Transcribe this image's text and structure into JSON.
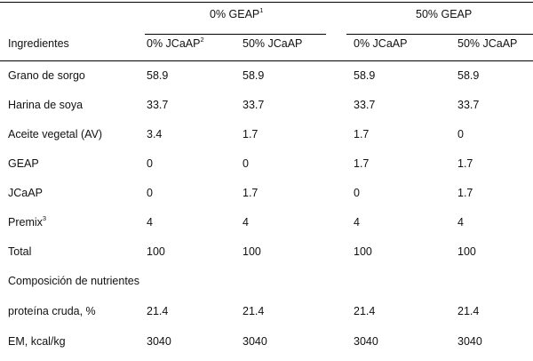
{
  "table": {
    "group_headers": [
      {
        "label": "0% GEAP",
        "sup": "1"
      },
      {
        "label": "50% GEAP",
        "sup": ""
      }
    ],
    "row_header_label": "Ingredientes",
    "sub_headers": [
      {
        "label": "0% JCaAP",
        "sup": "2"
      },
      {
        "label": "50% JCaAP",
        "sup": ""
      },
      {
        "label": "0% JCaAP",
        "sup": ""
      },
      {
        "label": "50% JCaAP",
        "sup": ""
      }
    ],
    "rows": [
      {
        "label": "Grano de sorgo",
        "sup": "",
        "values": [
          "58.9",
          "58.9",
          "58.9",
          "58.9"
        ]
      },
      {
        "label": "Harina de soya",
        "sup": "",
        "values": [
          "33.7",
          "33.7",
          "33.7",
          "33.7"
        ]
      },
      {
        "label": "Aceite vegetal (AV)",
        "sup": "",
        "values": [
          "3.4",
          "1.7",
          "1.7",
          "0"
        ]
      },
      {
        "label": "GEAP",
        "sup": "",
        "values": [
          "0",
          "0",
          "1.7",
          "1.7"
        ]
      },
      {
        "label": "JCaAP",
        "sup": "",
        "values": [
          "0",
          "1.7",
          "0",
          "1.7"
        ]
      },
      {
        "label": "Premix",
        "sup": "3",
        "values": [
          "4",
          "4",
          "4",
          "4"
        ]
      },
      {
        "label": "Total",
        "sup": "",
        "values": [
          "100",
          "100",
          "100",
          "100"
        ]
      },
      {
        "label": "Composición de nutrientes",
        "sup": "",
        "values": [
          "",
          "",
          "",
          ""
        ]
      },
      {
        "label": "proteína cruda, %",
        "sup": "",
        "values": [
          "21.4",
          "21.4",
          "21.4",
          "21.4"
        ]
      },
      {
        "label": "EM, kcal/kg",
        "sup": "",
        "values": [
          "3040",
          "3040",
          "3040",
          "3040"
        ]
      }
    ]
  }
}
